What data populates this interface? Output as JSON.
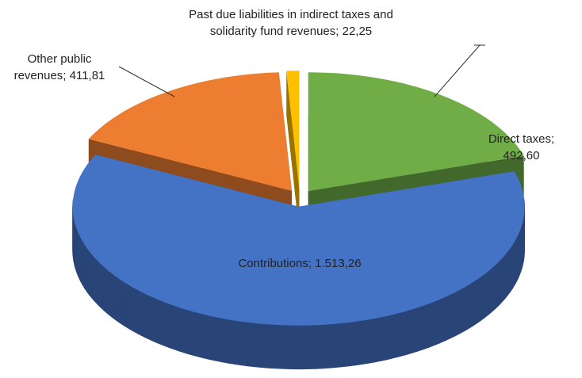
{
  "chart_data": {
    "type": "pie3d",
    "labels": [
      "Direct taxes; 492,60",
      "Contributions; 1.513,26",
      "Other public revenues; 411,81",
      "Past due liabilities in indirect taxes and solidarity fund revenues; 22,25"
    ],
    "values": [
      492.6,
      1513.26,
      411.81,
      22.25
    ],
    "colors": [
      "#70ad47",
      "#4472c4",
      "#ed7d31",
      "#ffc000"
    ]
  }
}
